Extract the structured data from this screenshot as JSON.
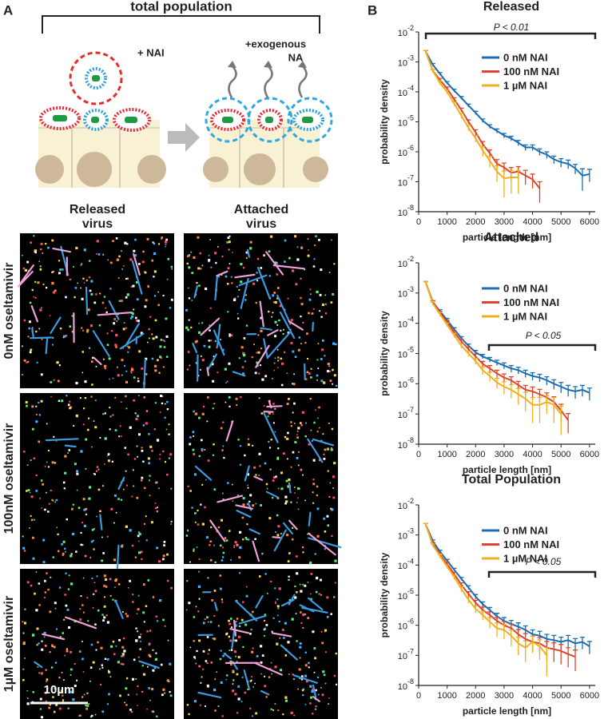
{
  "panel_a": {
    "label": "A",
    "title": "total population",
    "nai_label": "+ NAI",
    "exo_label": [
      "+exogenous",
      "NA"
    ],
    "column_headers": [
      [
        "Released",
        "virus"
      ],
      [
        "Attached",
        "virus"
      ]
    ],
    "row_labels": [
      "0nM oseltamivir",
      "100nM oseltamivir",
      "1µM oseltamivir"
    ],
    "scale_bar": "10µm"
  },
  "panel_b_label": "B",
  "chart_data": [
    {
      "type": "line",
      "title": "Released",
      "xlabel": "particle length [nm]",
      "ylabel": "probability density",
      "log_y": true,
      "legend": "upper right",
      "annotation": "P < 0.01",
      "x": [
        250,
        500,
        750,
        1000,
        1250,
        1500,
        1750,
        2000,
        2250,
        2500,
        2750,
        3000,
        3250,
        3500,
        3750,
        4000,
        4250,
        4500,
        4750,
        5000,
        5250,
        5500,
        5750,
        6000
      ],
      "xlim": [
        0,
        6200
      ],
      "xticks": [
        0,
        1000,
        2000,
        3000,
        4000,
        5000,
        6000
      ],
      "ylim": [
        1e-08,
        0.01
      ],
      "yticks": [
        {
          "value": 1e-08,
          "label": "10-8"
        },
        {
          "value": 1e-07,
          "label": "10-7"
        },
        {
          "value": 1e-06,
          "label": "10-6"
        },
        {
          "value": 1e-05,
          "label": "10-5"
        },
        {
          "value": 0.0001,
          "label": "10-4"
        },
        {
          "value": 0.001,
          "label": "10-3"
        },
        {
          "value": 0.01,
          "label": "10-2"
        }
      ],
      "series": [
        {
          "name": "0 nM NAI",
          "color": "#1b6db3",
          "values": [
            0.0022,
            0.0008,
            0.0004,
            0.0002,
            0.00011,
            6.3e-05,
            3.5e-05,
            2e-05,
            1.1e-05,
            7e-06,
            5e-06,
            3.5e-06,
            2.8e-06,
            2e-06,
            1.4e-06,
            1.4e-06,
            1e-06,
            8e-07,
            5.6e-07,
            4.5e-07,
            4e-07,
            2.8e-07,
            1.6e-07,
            1.8e-07
          ],
          "errors": [
            0.0002,
            8e-05,
            4e-05,
            2e-05,
            1.2e-05,
            7e-06,
            4e-06,
            2.5e-06,
            1.5e-06,
            1e-06,
            8e-07,
            6e-07,
            5e-07,
            4e-07,
            3e-07,
            3e-07,
            2.5e-07,
            2e-07,
            1.6e-07,
            1.4e-07,
            1.3e-07,
            1e-07,
            1.1e-07,
            8e-08
          ]
        },
        {
          "name": "100 nM NAI",
          "color": "#e0452b",
          "values": [
            0.0022,
            0.0005,
            0.00025,
            0.00013,
            5.6e-05,
            2.5e-05,
            1e-05,
            4.5e-06,
            1.8e-06,
            9e-07,
            4e-07,
            3e-07,
            2e-07,
            2.2e-07,
            1.6e-07,
            1.2e-07,
            6e-08,
            null,
            null,
            null,
            null,
            null,
            null,
            null
          ],
          "errors": [
            0.0002,
            6e-05,
            3e-05,
            1.5e-05,
            7e-06,
            3.5e-06,
            1.6e-06,
            9e-07,
            4e-07,
            2.5e-07,
            1.5e-07,
            1.2e-07,
            1e-07,
            1e-07,
            8e-08,
            6e-08,
            4e-08,
            null,
            null,
            null,
            null,
            null,
            null,
            null
          ]
        },
        {
          "name": "1 µM NAI",
          "color": "#f2b01e",
          "values": [
            0.0022,
            0.0005,
            0.0002,
            0.0001,
            4e-05,
            1.6e-05,
            6.3e-06,
            2.8e-06,
            1.1e-06,
            5e-07,
            2.2e-07,
            1.3e-07,
            1.4e-07,
            1.4e-07,
            null,
            null,
            null,
            null,
            null,
            null,
            null,
            null,
            null,
            null
          ],
          "errors": [
            0.0002,
            6e-05,
            3e-05,
            1.5e-05,
            6e-06,
            3e-06,
            1.3e-06,
            7e-07,
            4e-07,
            2e-07,
            1.2e-07,
            1e-07,
            1e-07,
            1e-07,
            null,
            null,
            null,
            null,
            null,
            null,
            null,
            null,
            null,
            null
          ]
        }
      ]
    },
    {
      "type": "line",
      "title": "Attached",
      "xlabel": "particle length [nm]",
      "ylabel": "probability density",
      "log_y": true,
      "legend": "upper right",
      "annotation": "P < 0.05",
      "x": [
        250,
        500,
        750,
        1000,
        1250,
        1500,
        1750,
        2000,
        2250,
        2500,
        2750,
        3000,
        3250,
        3500,
        3750,
        4000,
        4250,
        4500,
        4750,
        5000,
        5250,
        5500,
        5750,
        6000
      ],
      "xlim": [
        0,
        6200
      ],
      "xticks": [
        0,
        1000,
        2000,
        3000,
        4000,
        5000,
        6000
      ],
      "ylim": [
        1e-08,
        0.01
      ],
      "yticks": [
        {
          "value": 1e-08,
          "label": "10-8"
        },
        {
          "value": 1e-07,
          "label": "10-7"
        },
        {
          "value": 1e-06,
          "label": "10-6"
        },
        {
          "value": 1e-05,
          "label": "10-5"
        },
        {
          "value": 0.0001,
          "label": "10-4"
        },
        {
          "value": 0.001,
          "label": "10-3"
        },
        {
          "value": 0.01,
          "label": "10-2"
        }
      ],
      "series": [
        {
          "name": "0 nM NAI",
          "color": "#1b6db3",
          "values": [
            0.0022,
            0.0005,
            0.00025,
            0.00013,
            6.3e-05,
            3.2e-05,
            1.8e-05,
            1.1e-05,
            8e-06,
            6.3e-06,
            5e-06,
            4e-06,
            3.2e-06,
            2.8e-06,
            2.2e-06,
            1.8e-06,
            1.6e-06,
            1.3e-06,
            1e-06,
            8e-07,
            6.3e-07,
            5.6e-07,
            6.3e-07,
            5e-07
          ],
          "errors": [
            0.0002,
            6e-05,
            3e-05,
            1.5e-05,
            8e-06,
            4e-06,
            2.5e-06,
            1.6e-06,
            1.3e-06,
            1.1e-06,
            1e-06,
            9e-07,
            8e-07,
            7e-07,
            6e-07,
            5e-07,
            4.5e-07,
            4e-07,
            3.5e-07,
            3e-07,
            2.5e-07,
            2.4e-07,
            2.5e-07,
            2.2e-07
          ]
        },
        {
          "name": "100 nM NAI",
          "color": "#e0452b",
          "values": [
            0.0022,
            0.0005,
            0.00022,
            0.00011,
            5e-05,
            2.5e-05,
            1.4e-05,
            8e-06,
            4.5e-06,
            3.2e-06,
            2.2e-06,
            1.6e-06,
            1.3e-06,
            9e-07,
            6.3e-07,
            5.6e-07,
            4.5e-07,
            3.5e-07,
            2.5e-07,
            1.3e-07,
            6.3e-08,
            null,
            null,
            null
          ],
          "errors": [
            0.0002,
            6e-05,
            3e-05,
            1.5e-05,
            7e-06,
            4e-06,
            2.5e-06,
            1.6e-06,
            1e-06,
            8e-07,
            6e-07,
            5e-07,
            4e-07,
            3e-07,
            2.5e-07,
            2.2e-07,
            2e-07,
            1.5e-07,
            1.2e-07,
            8e-08,
            4e-08,
            null,
            null,
            null
          ]
        },
        {
          "name": "1 µM NAI",
          "color": "#f2b01e",
          "values": [
            0.0022,
            0.00045,
            0.0002,
            9e-05,
            4e-05,
            1.8e-05,
            1e-05,
            5.6e-06,
            2.8e-06,
            1.8e-06,
            1.1e-06,
            8e-07,
            6.3e-07,
            4.5e-07,
            3.2e-07,
            2e-07,
            2e-07,
            2.5e-07,
            2e-07,
            1e-07,
            null,
            null,
            null,
            null
          ],
          "errors": [
            0.0002,
            5e-05,
            3e-05,
            1.2e-05,
            6e-06,
            3e-06,
            2e-06,
            1.2e-06,
            8e-07,
            6e-07,
            4e-07,
            3.5e-07,
            3e-07,
            2.5e-07,
            2e-07,
            1.5e-07,
            1.5e-07,
            1.5e-07,
            1.5e-07,
            8e-08,
            null,
            null,
            null,
            null
          ]
        }
      ]
    },
    {
      "type": "line",
      "title": "Total Population",
      "xlabel": "particle length [nm]",
      "ylabel": "probability density",
      "log_y": true,
      "legend": "upper right",
      "annotation": "P < 0.05",
      "x": [
        250,
        500,
        750,
        1000,
        1250,
        1500,
        1750,
        2000,
        2250,
        2500,
        2750,
        3000,
        3250,
        3500,
        3750,
        4000,
        4250,
        4500,
        4750,
        5000,
        5250,
        5500,
        5750,
        6000
      ],
      "xlim": [
        0,
        6200
      ],
      "xticks": [
        0,
        1000,
        2000,
        3000,
        4000,
        5000,
        6000
      ],
      "ylim": [
        1e-08,
        0.01
      ],
      "yticks": [
        {
          "value": 1e-08,
          "label": "10-8"
        },
        {
          "value": 1e-07,
          "label": "10-7"
        },
        {
          "value": 1e-06,
          "label": "10-6"
        },
        {
          "value": 1e-05,
          "label": "10-5"
        },
        {
          "value": 0.0001,
          "label": "10-4"
        },
        {
          "value": 0.001,
          "label": "10-3"
        },
        {
          "value": 0.01,
          "label": "10-2"
        }
      ],
      "series": [
        {
          "name": "0 nM NAI",
          "color": "#1b6db3",
          "values": [
            0.0022,
            0.00063,
            0.00028,
            0.00014,
            7e-05,
            3.5e-05,
            1.8e-05,
            9e-06,
            5e-06,
            3.2e-06,
            2e-06,
            1.4e-06,
            1.1e-06,
            9e-07,
            7e-07,
            5e-07,
            4.5e-07,
            3.5e-07,
            3.2e-07,
            2.8e-07,
            3.2e-07,
            2.5e-07,
            2.8e-07,
            2e-07
          ],
          "errors": [
            0.0002,
            6e-05,
            3e-05,
            1.5e-05,
            8e-06,
            4e-06,
            2.5e-06,
            1.5e-06,
            1e-06,
            7e-07,
            5e-07,
            4e-07,
            3.5e-07,
            3e-07,
            2.5e-07,
            2e-07,
            1.8e-07,
            1.5e-07,
            1.4e-07,
            1.2e-07,
            1.4e-07,
            1.1e-07,
            1.2e-07,
            9e-08
          ]
        },
        {
          "name": "100 nM NAI",
          "color": "#e0452b",
          "values": [
            0.0022,
            0.0005,
            0.00022,
            0.00011,
            5e-05,
            2.2e-05,
            1.1e-05,
            5.6e-06,
            3.2e-06,
            2.2e-06,
            1.4e-06,
            1e-06,
            8e-07,
            5e-07,
            3.5e-07,
            2.8e-07,
            2.5e-07,
            1.8e-07,
            1.6e-07,
            1.4e-07,
            1.1e-07,
            9e-08,
            null,
            null
          ],
          "errors": [
            0.0002,
            6e-05,
            3e-05,
            1.5e-05,
            7e-06,
            3.5e-06,
            2e-06,
            1.2e-06,
            8e-07,
            6e-07,
            4.5e-07,
            3.5e-07,
            3e-07,
            2.2e-07,
            1.8e-07,
            1.5e-07,
            1.4e-07,
            1.1e-07,
            1e-07,
            9e-08,
            7e-08,
            6e-08,
            null,
            null
          ]
        },
        {
          "name": "1 µM NAI",
          "color": "#f2b01e",
          "values": [
            0.0022,
            0.00045,
            0.0002,
            9e-05,
            4e-05,
            1.6e-05,
            7e-06,
            3.5e-06,
            2.2e-06,
            1.3e-06,
            8e-07,
            7e-07,
            4.5e-07,
            2.5e-07,
            1.8e-07,
            2.8e-07,
            2e-07,
            1e-07,
            null,
            null,
            null,
            null,
            null,
            null
          ],
          "errors": [
            0.0002,
            5e-05,
            3e-05,
            1.2e-05,
            6e-06,
            3e-06,
            1.5e-06,
            9e-07,
            7e-07,
            5e-07,
            4e-07,
            3.5e-07,
            2.5e-07,
            1.5e-07,
            1.2e-07,
            1.6e-07,
            1.3e-07,
            8e-08,
            null,
            null,
            null,
            null,
            null,
            null
          ]
        }
      ]
    }
  ]
}
